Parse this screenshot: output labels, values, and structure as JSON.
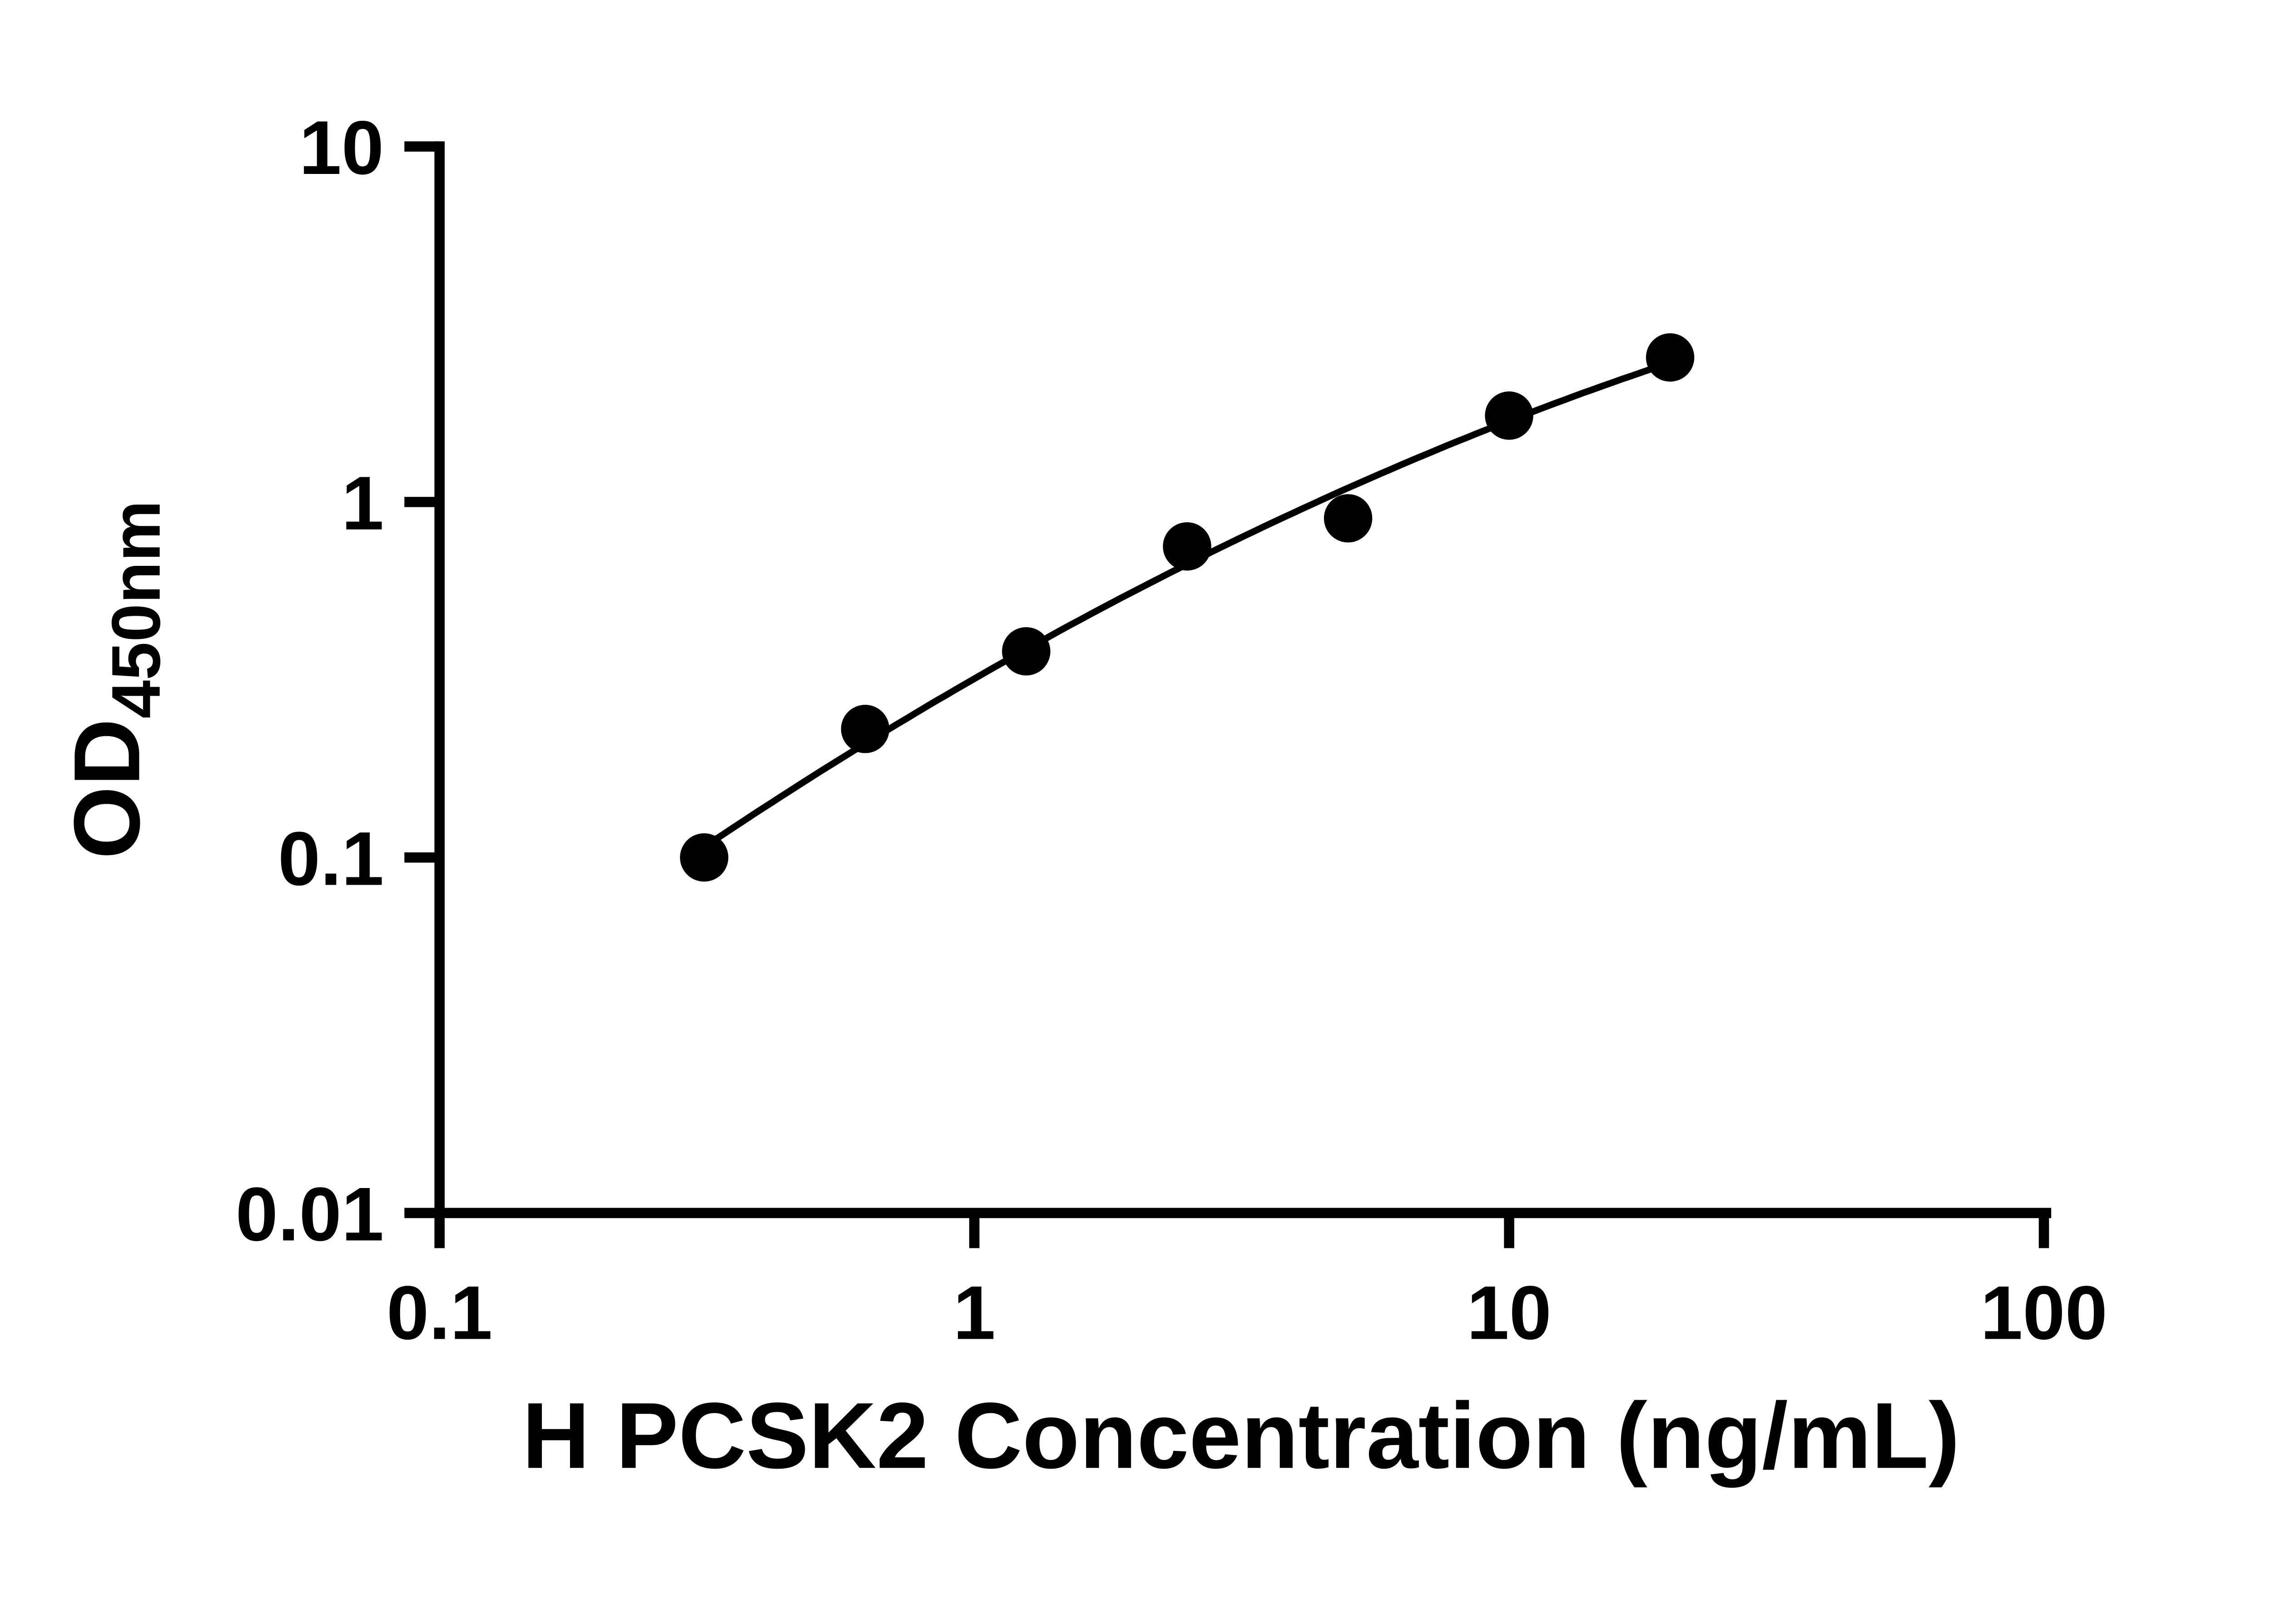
{
  "figure": {
    "background_color": "#ffffff"
  },
  "chart_data": {
    "type": "scatter",
    "title": "",
    "xlabel": "H PCSK2 Concentration (ng/mL)",
    "ylabel": "OD",
    "ylabel_subscript": "450nm",
    "x_scale": "log10",
    "y_scale": "log10",
    "xlim": [
      0.1,
      100
    ],
    "ylim": [
      0.01,
      10
    ],
    "x_ticks": [
      "0.1",
      "1",
      "10",
      "100"
    ],
    "y_ticks": [
      "10",
      "1",
      "0.1",
      "0.01"
    ],
    "x": [
      0.3125,
      0.625,
      1.25,
      2.5,
      5,
      10,
      20
    ],
    "y": [
      0.1,
      0.23,
      0.38,
      0.75,
      0.9,
      1.75,
      2.55
    ],
    "fit": "smooth quadratic fit through points in log-log space",
    "grid": false,
    "legend": "none",
    "marker": "filled-circle",
    "marker_color": "#000000",
    "line_color": "#000000",
    "axis_color": "#000000"
  }
}
